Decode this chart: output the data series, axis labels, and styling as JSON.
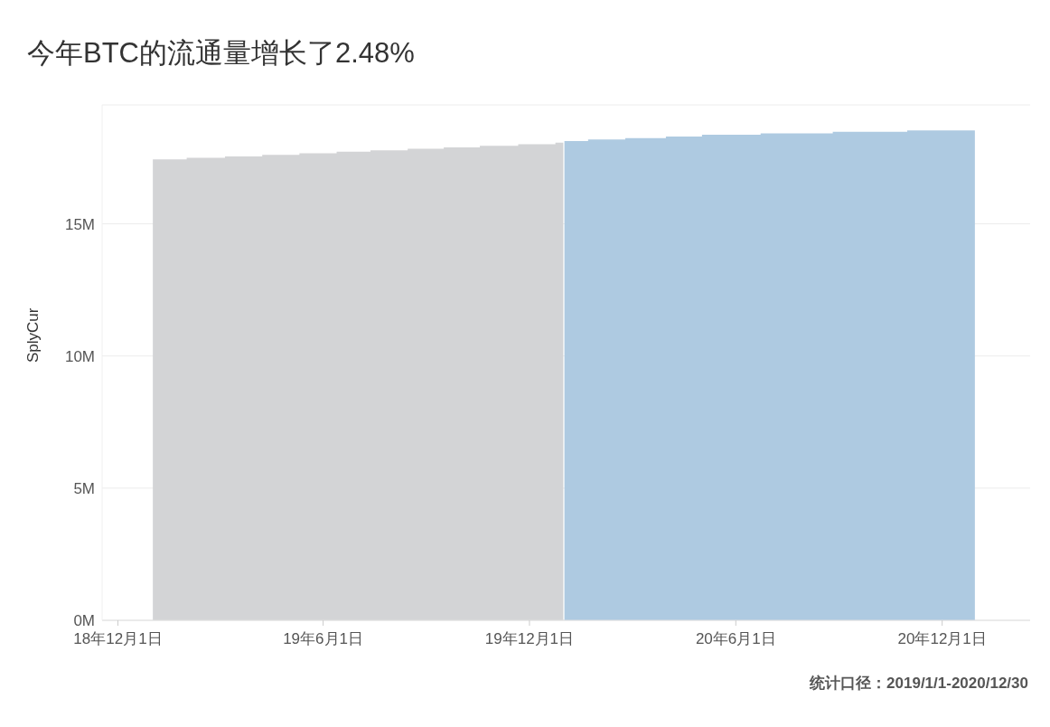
{
  "chart_data": {
    "type": "area",
    "title": "今年BTC的流通量增长了2.48%",
    "ylabel": "SplyCur",
    "annotations": [
      "统计口径：2019/1/1-2020/12/30"
    ],
    "series": [
      {
        "color": "#d3d4d6",
        "x": [
          "2019-01-01",
          "2019-01-31",
          "2019-03-06",
          "2019-04-08",
          "2019-05-11",
          "2019-06-13",
          "2019-07-13",
          "2019-08-15",
          "2019-09-16",
          "2019-10-18",
          "2019-11-21",
          "2019-12-24",
          "2019-12-31"
        ],
        "values": [
          17.44,
          17.5,
          17.55,
          17.61,
          17.67,
          17.73,
          17.78,
          17.84,
          17.89,
          17.95,
          18.01,
          18.07,
          18.07
        ]
      },
      {
        "color": "#aecae1",
        "x": [
          "2020-01-01",
          "2020-01-22",
          "2020-02-24",
          "2020-03-31",
          "2020-05-02",
          "2020-06-23",
          "2020-08-26",
          "2020-10-31",
          "2020-12-30"
        ],
        "values": [
          18.13,
          18.19,
          18.24,
          18.3,
          18.37,
          18.42,
          18.48,
          18.53,
          18.53
        ]
      }
    ],
    "xlim": [
      "2018-11-17",
      "2021-02-17"
    ],
    "xticks": [
      {
        "value": "2018-12-01",
        "label": "18年12月1日"
      },
      {
        "value": "2019-06-01",
        "label": "19年6月1日"
      },
      {
        "value": "2019-12-01",
        "label": "19年12月1日"
      },
      {
        "value": "2020-06-01",
        "label": "20年6月1日"
      },
      {
        "value": "2020-12-01",
        "label": "20年12月1日"
      }
    ],
    "ylim": [
      0,
      19.5
    ],
    "yticks": [
      {
        "value": 0,
        "label": "0M"
      },
      {
        "value": 5,
        "label": "5M"
      },
      {
        "value": 10,
        "label": "10M"
      },
      {
        "value": 15,
        "label": "15M"
      }
    ],
    "grid": "y"
  }
}
